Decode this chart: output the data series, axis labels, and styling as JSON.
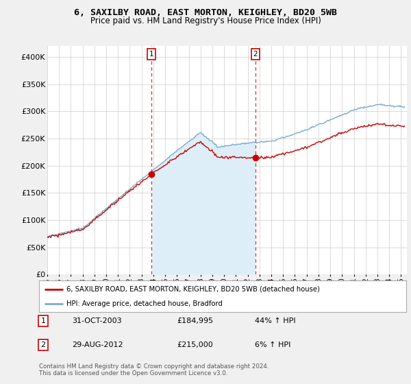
{
  "title": "6, SAXILBY ROAD, EAST MORTON, KEIGHLEY, BD20 5WB",
  "subtitle": "Price paid vs. HM Land Registry's House Price Index (HPI)",
  "ylabel_ticks": [
    "£0",
    "£50K",
    "£100K",
    "£150K",
    "£200K",
    "£250K",
    "£300K",
    "£350K",
    "£400K"
  ],
  "ytick_values": [
    0,
    50000,
    100000,
    150000,
    200000,
    250000,
    300000,
    350000,
    400000
  ],
  "ylim": [
    0,
    420000
  ],
  "xlim_start": 1995.0,
  "xlim_end": 2025.5,
  "red_color": "#cc0000",
  "blue_color": "#7aabcc",
  "blue_fill_color": "#ddeef8",
  "marker1_x": 2003.83,
  "marker1_y": 184995,
  "marker2_x": 2012.66,
  "marker2_y": 215000,
  "vline1_x": 2003.83,
  "vline2_x": 2012.66,
  "legend_label_red": "6, SAXILBY ROAD, EAST MORTON, KEIGHLEY, BD20 5WB (detached house)",
  "legend_label_blue": "HPI: Average price, detached house, Bradford",
  "table_rows": [
    [
      "1",
      "31-OCT-2003",
      "£184,995",
      "44% ↑ HPI"
    ],
    [
      "2",
      "29-AUG-2012",
      "£215,000",
      "6% ↑ HPI"
    ]
  ],
  "footer": "Contains HM Land Registry data © Crown copyright and database right 2024.\nThis data is licensed under the Open Government Licence v3.0.",
  "background_color": "#f0f0f0",
  "plot_bg_color": "#ffffff"
}
